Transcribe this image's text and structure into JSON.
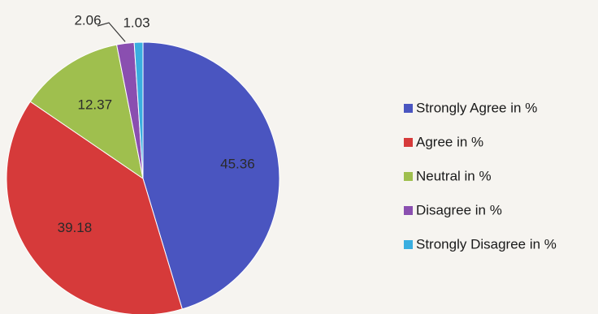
{
  "chart_data": {
    "type": "pie",
    "title": "",
    "slices": [
      {
        "name": "Strongly Agree in %",
        "value": 45.36,
        "label": "45.36",
        "color": "#4a55c0"
      },
      {
        "name": "Agree in %",
        "value": 39.18,
        "label": "39.18",
        "color": "#d63a3a"
      },
      {
        "name": "Neutral in %",
        "value": 12.37,
        "label": "12.37",
        "color": "#9fbf4e"
      },
      {
        "name": "Disagree in %",
        "value": 2.06,
        "label": "2.06",
        "color": "#8a4fb0"
      },
      {
        "name": "Strongly Disagree in %",
        "value": 1.03,
        "label": "1.03",
        "color": "#3aaee0"
      }
    ],
    "start": "top, clockwise",
    "legend_position": "right"
  }
}
